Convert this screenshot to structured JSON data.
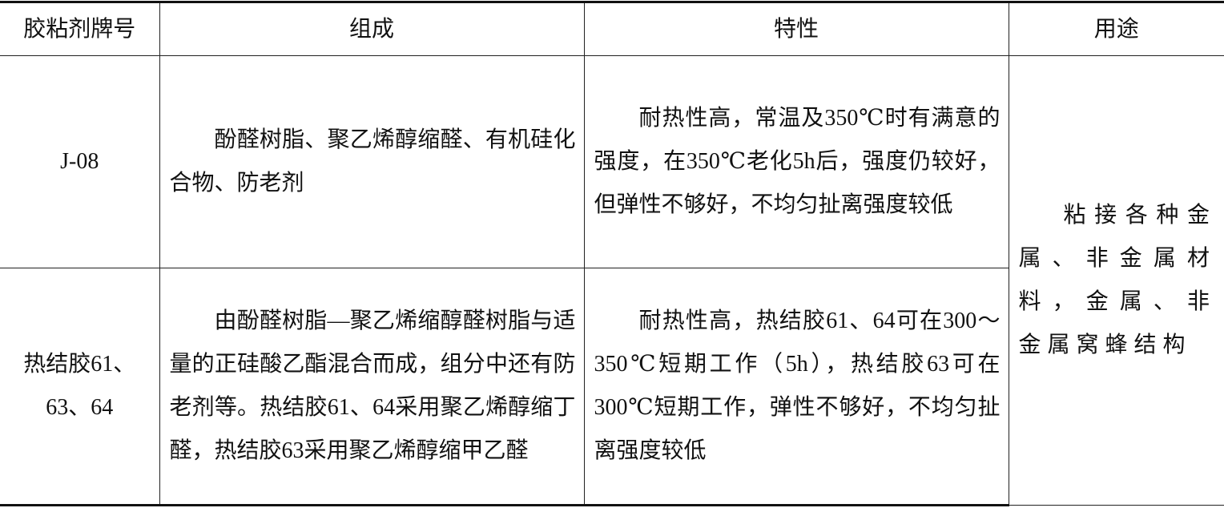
{
  "table": {
    "headers": [
      "胶粘剂牌号",
      "组成",
      "特性",
      "用途"
    ],
    "rows": [
      {
        "grade": "J-08",
        "composition": "酚醛树脂、聚乙烯醇缩醛、有机硅化合物、防老剂",
        "properties": "耐热性高，常温及350℃时有满意的强度，在350℃老化5h后，强度仍较好，但弹性不够好，不均匀扯离强度较低"
      },
      {
        "grade": "热结胶61、63、64",
        "composition": "由酚醛树脂—聚乙烯缩醇醛树脂与适量的正硅酸乙酯混合而成，组分中还有防老剂等。热结胶61、64采用聚乙烯醇缩丁醛，热结胶63采用聚乙烯醇缩甲乙醛",
        "properties": "耐热性高，热结胶61、64可在300～350℃短期工作（5h），热结胶63可在300℃短期工作，弹性不够好，不均匀扯离强度较低"
      }
    ],
    "usage": "粘接各种金属、非金属材料，金属、非金属窝蜂结构"
  }
}
